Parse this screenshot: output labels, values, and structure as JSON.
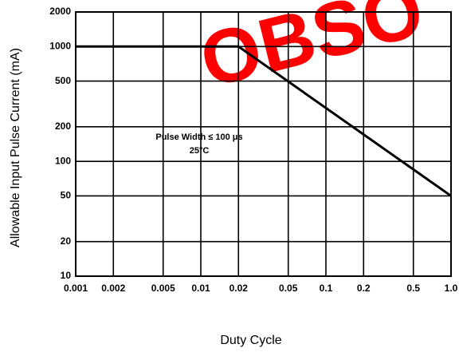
{
  "chart_data": {
    "type": "line",
    "xlabel": "Duty Cycle",
    "ylabel": "Allowable Input Pulse Current (mA)",
    "annotations": [
      "Pulse Width ≤ 100 μs",
      "25°C"
    ],
    "watermark": "OBSO",
    "watermark_color": "#ff0000",
    "x": [
      0.001,
      0.02,
      1.0
    ],
    "series": [
      {
        "color": "#000000",
        "values": [
          1000,
          1000,
          50
        ]
      }
    ],
    "xscale": "log",
    "yscale": "log",
    "xlim": [
      0.001,
      1.0
    ],
    "ylim": [
      10,
      2000
    ],
    "xticks": [
      0.001,
      0.002,
      0.005,
      0.01,
      0.02,
      0.05,
      0.1,
      0.2,
      0.5,
      {
        "value": 1,
        "label": "1.0"
      }
    ],
    "yticks": [
      10,
      20,
      50,
      100,
      200,
      500,
      1000,
      2000
    ],
    "grid": true
  }
}
